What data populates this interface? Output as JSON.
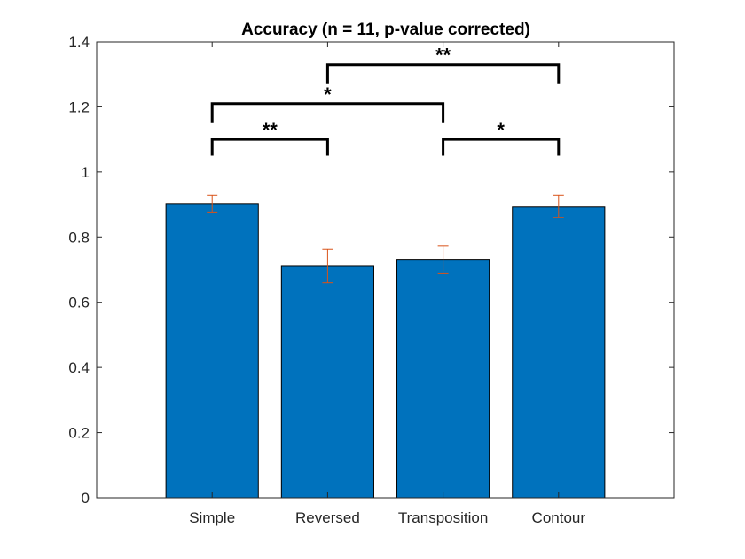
{
  "chart_data": {
    "type": "bar",
    "title": "Accuracy (n = 11, p-value corrected)",
    "xlabel": "",
    "ylabel": "",
    "categories": [
      "Simple",
      "Reversed",
      "Transposition",
      "Contour"
    ],
    "values": [
      0.902,
      0.711,
      0.731,
      0.894
    ],
    "errors": [
      0.026,
      0.051,
      0.043,
      0.034
    ],
    "ylim": [
      0,
      1.4
    ],
    "yticks": [
      0,
      0.2,
      0.4,
      0.6,
      0.8,
      1,
      1.2,
      1.4
    ],
    "ytick_labels": [
      "0",
      "0.2",
      "0.4",
      "0.6",
      "0.8",
      "1",
      "1.2",
      "1.4"
    ],
    "grid": false,
    "colors": {
      "bar": "#0072BD",
      "bar_edge": "#000000",
      "error": "#D95319",
      "axis": "#262626",
      "bracket": "#000000"
    },
    "significance": [
      {
        "from": 0,
        "to": 1,
        "level": 1.05,
        "top": 1.1,
        "label": "**"
      },
      {
        "from": 2,
        "to": 3,
        "level": 1.05,
        "top": 1.1,
        "label": "*"
      },
      {
        "from": 0,
        "to": 2,
        "level": 1.15,
        "top": 1.21,
        "label": "*"
      },
      {
        "from": 1,
        "to": 3,
        "level": 1.27,
        "top": 1.33,
        "label": "**"
      }
    ]
  }
}
